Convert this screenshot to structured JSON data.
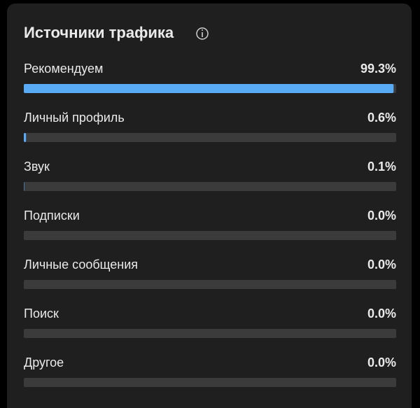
{
  "chart_data": {
    "type": "bar",
    "title": "Источники трафика",
    "categories": [
      "Рекомендуем",
      "Личный профиль",
      "Звук",
      "Подписки",
      "Личные сообщения",
      "Поиск",
      "Другое"
    ],
    "values": [
      99.3,
      0.6,
      0.1,
      0.0,
      0.0,
      0.0,
      0.0
    ],
    "value_labels": [
      "99.3%",
      "0.6%",
      "0.1%",
      "0.0%",
      "0.0%",
      "0.0%",
      "0.0%"
    ],
    "xlim": [
      0,
      100
    ],
    "color": "#5aabf5",
    "track_color": "#3b3b3b"
  }
}
